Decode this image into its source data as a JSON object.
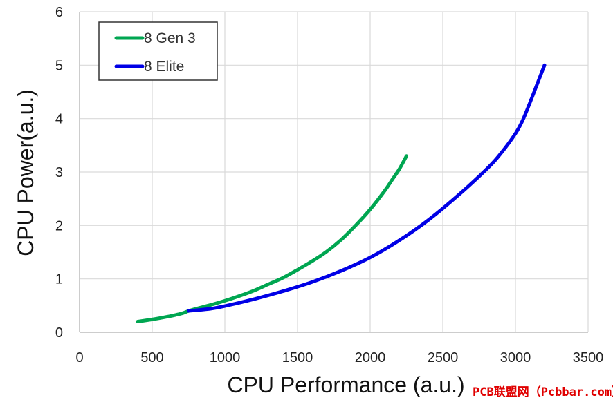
{
  "chart_data": {
    "type": "line",
    "title": "",
    "xlabel": "CPU Performance (a.u.)",
    "ylabel": "CPU Power(a.u.)",
    "xlim": [
      0,
      3500
    ],
    "ylim": [
      0,
      6
    ],
    "xticks": [
      0,
      500,
      1000,
      1500,
      2000,
      2500,
      3000,
      3500
    ],
    "yticks": [
      0,
      1,
      2,
      3,
      4,
      5,
      6
    ],
    "grid": true,
    "legend_position": "top-left",
    "series": [
      {
        "name": "8 Gen 3",
        "color": "#00a651",
        "x": [
          400,
          500,
          600,
          700,
          750,
          800,
          900,
          1000,
          1100,
          1200,
          1300,
          1400,
          1500,
          1600,
          1700,
          1800,
          1900,
          2000,
          2100,
          2150,
          2200,
          2250
        ],
        "y": [
          0.2,
          0.24,
          0.29,
          0.35,
          0.4,
          0.44,
          0.51,
          0.59,
          0.68,
          0.78,
          0.9,
          1.02,
          1.17,
          1.33,
          1.51,
          1.73,
          2.0,
          2.3,
          2.65,
          2.85,
          3.05,
          3.3
        ]
      },
      {
        "name": "8 Elite",
        "color": "#0000e6",
        "x": [
          750,
          900,
          1000,
          1200,
          1400,
          1600,
          1800,
          2000,
          2200,
          2400,
          2600,
          2800,
          2900,
          3000,
          3050,
          3100,
          3150,
          3200
        ],
        "y": [
          0.4,
          0.44,
          0.49,
          0.62,
          0.77,
          0.94,
          1.15,
          1.4,
          1.72,
          2.1,
          2.55,
          3.05,
          3.35,
          3.72,
          3.97,
          4.3,
          4.65,
          5.0
        ]
      }
    ]
  },
  "watermark": "PCB联盟网（Pcbbar.com）"
}
